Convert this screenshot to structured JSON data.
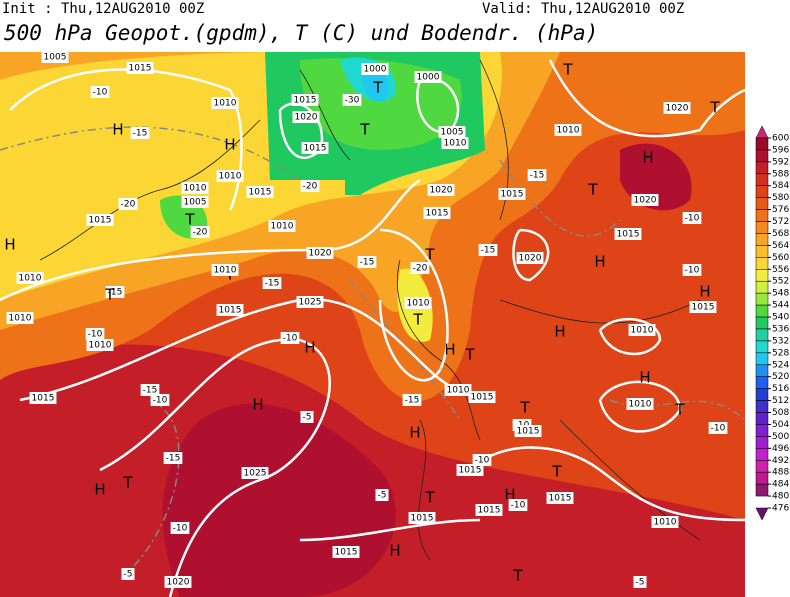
{
  "header": {
    "init": "Init : Thu,12AUG2010 00Z",
    "valid": "Valid: Thu,12AUG2010 00Z",
    "title": "500 hPa Geopot.(gpdm), T (C) und Bodendr. (hPa)"
  },
  "colorbar": {
    "ticks": [
      600,
      596,
      592,
      588,
      584,
      580,
      576,
      572,
      568,
      564,
      560,
      556,
      552,
      548,
      544,
      540,
      536,
      532,
      528,
      524,
      520,
      516,
      512,
      508,
      504,
      500,
      496,
      492,
      488,
      484,
      480,
      476
    ],
    "colors": [
      "#d02878",
      "#9b0a2a",
      "#b01030",
      "#c41e28",
      "#d43020",
      "#de4418",
      "#e65a16",
      "#ee7218",
      "#f48a1c",
      "#f8a424",
      "#fbbd2c",
      "#fcd634",
      "#f4ec3c",
      "#d0f040",
      "#98e840",
      "#50d840",
      "#20c860",
      "#20d0a0",
      "#20d8d0",
      "#20c8f0",
      "#2090f0",
      "#2060f0",
      "#2040d8",
      "#4030d0",
      "#6020d0",
      "#8020d0",
      "#a020d0",
      "#c020d0",
      "#d020b0",
      "#c01890",
      "#901870",
      "#6a1070"
    ]
  },
  "map": {
    "labels": [
      "H",
      "H",
      "H",
      "T",
      "T",
      "1005",
      "1015",
      "-10",
      "1010",
      "-15",
      "1010",
      "1010",
      "1005",
      "-20",
      "1015",
      "-20",
      "1010",
      "-15",
      "T",
      "1010",
      "1015",
      "-20",
      "1010",
      "1020",
      "-15",
      "-15",
      "1015",
      "1025",
      "1010",
      "-10",
      "1010",
      "-10",
      "H",
      "1000",
      "T",
      "1000",
      "1015",
      "-30",
      "1020",
      "T",
      "1015",
      "1005",
      "1010",
      "1020",
      "1015",
      "T",
      "-20",
      "1010",
      "T",
      "-15",
      "1020",
      "1015",
      "-15",
      "1010",
      "T",
      "1020",
      "T",
      "H",
      "T",
      "1020",
      "-10",
      "1015",
      "H",
      "-10",
      "H",
      "1015",
      "1010",
      "H",
      "H",
      "T",
      "1015",
      "1010",
      "-15",
      "T",
      "-10",
      "1015",
      "H",
      "1010",
      "T",
      "-10",
      "-15",
      "-10",
      "1015",
      "H",
      "-5",
      "H",
      "-10",
      "1015",
      "-15",
      "H",
      "T",
      "1025",
      "-5",
      "T",
      "1015",
      "H",
      "-10",
      "1015",
      "1015",
      "T",
      "-10",
      "1010",
      "1015",
      "H",
      "-5",
      "1020",
      "T",
      "-5"
    ]
  }
}
